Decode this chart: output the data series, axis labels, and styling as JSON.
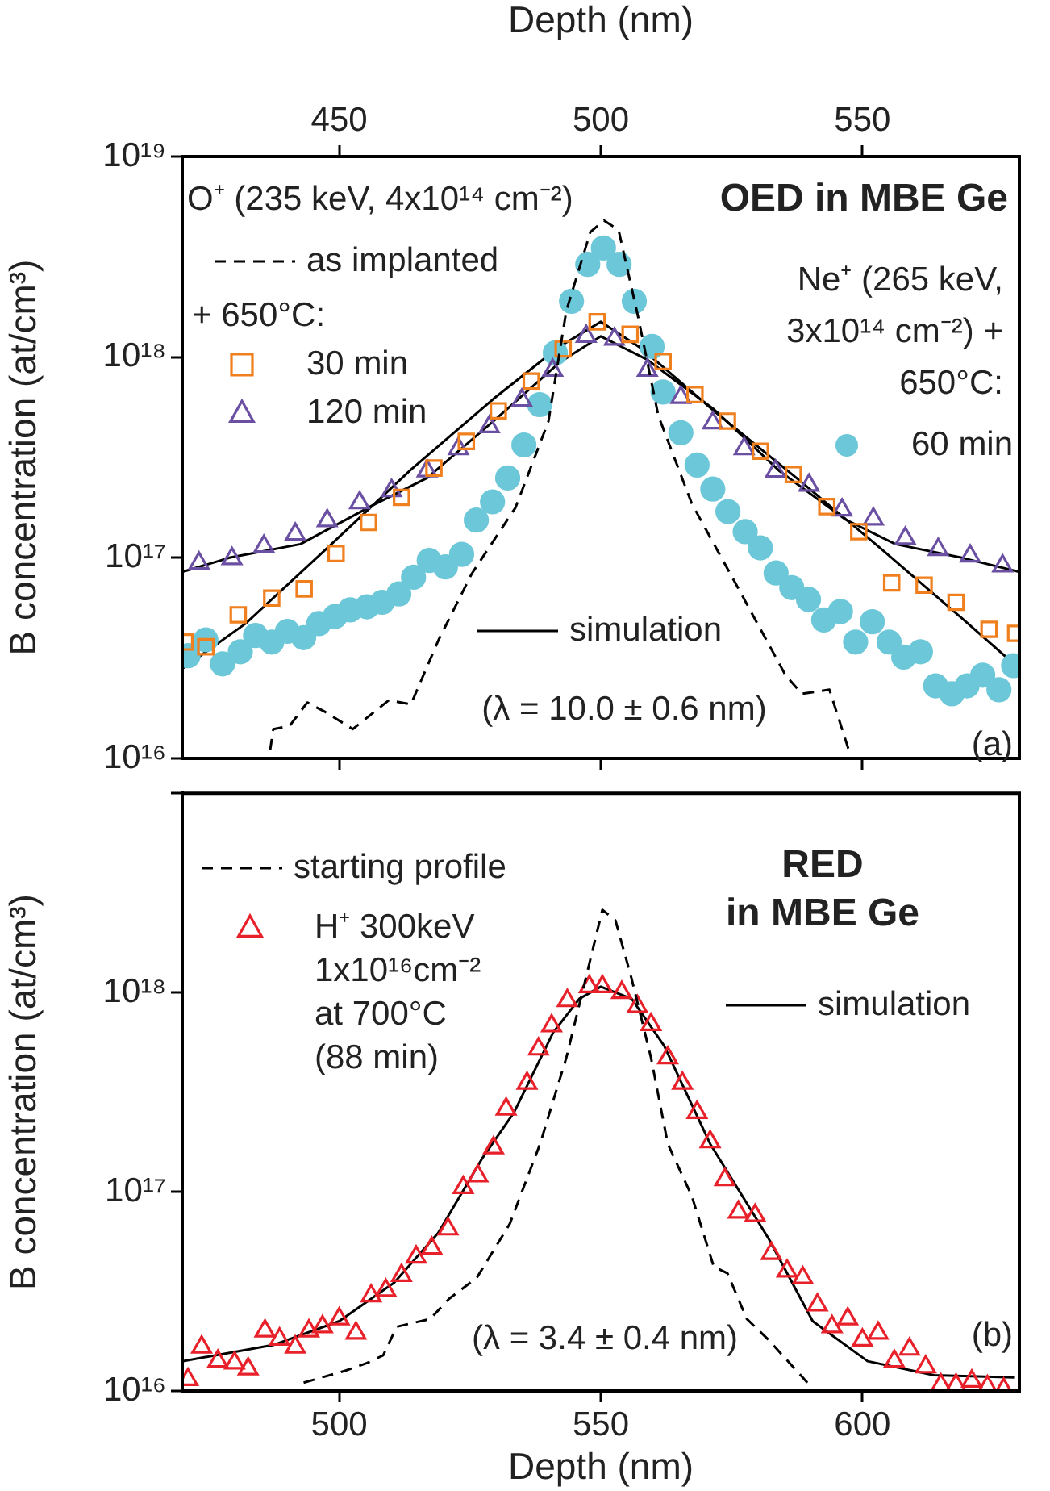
{
  "chart_data": [
    {
      "type": "scatter",
      "title": "OED in MBE Ge",
      "xlabel": "Depth (nm)",
      "ylabel": "B concentration (at/cm³)",
      "xlim": [
        420,
        580
      ],
      "xticks": [
        450,
        500,
        550
      ],
      "log": true,
      "ylim": [
        1e+16,
        1e+19
      ],
      "yticks": [
        {
          "value": 1e+16,
          "label": "10¹⁶"
        },
        {
          "value": 1e+17,
          "label": "10¹⁷"
        },
        {
          "value": 1e+18,
          "label": "10¹⁸"
        },
        {
          "value": 1e+19,
          "label": "10¹⁹"
        }
      ],
      "grid": false,
      "legend": "top left",
      "annotations": [
        "O⁺ (235 keV, 4x10¹⁴ cm⁻²)",
        "+ 650°C:",
        "Ne⁺ (265 keV, 3x10¹⁴ cm⁻²) + 650°C:",
        "(λ = 10.0 ± 0.6 nm)",
        "(a)"
      ],
      "series": [
        {
          "name": "as implanted",
          "type": "line",
          "line_style": "dashed",
          "marker": "none",
          "color": "#000000",
          "x": [
            436.8,
            437.4,
            440.5,
            443.9,
            447.4,
            452.6,
            454.7,
            459.5,
            463.7,
            469,
            475.3,
            483.7,
            490,
            493.4,
            498,
            500.6,
            503.4,
            507.1,
            511,
            517.4,
            527,
            535.3,
            538.4,
            543.7,
            547.4
          ],
          "values": [
            1.1e+16,
            1.4e+16,
            1.45e+16,
            1.9e+16,
            1.7e+16,
            1.4e+16,
            1.55e+16,
            1.95e+16,
            1.86e+16,
            3.9e+16,
            8.3e+16,
            1.78e+17,
            4.8e+17,
            1.7e+18,
            4.2e+18,
            4.8e+18,
            4.3e+18,
            1.6e+18,
            5.1e+17,
            1.86e+17,
            6.5e+16,
            2.6e+16,
            2.1e+16,
            2.2e+16,
            1.1e+16
          ]
        },
        {
          "name": "30 min",
          "type": "scatter",
          "marker": "square",
          "color": "#f07f1e",
          "x": [
            420.5,
            424.5,
            430.7,
            437.1,
            443.3,
            449.4,
            455.6,
            461.9,
            468.1,
            474.3,
            480.4,
            486.7,
            492.8,
            499.3,
            505.6,
            511.9,
            518,
            524.2,
            530.5,
            536.8,
            543.2,
            549.3,
            555.6,
            561.8,
            567.9,
            574.2,
            579.3
          ],
          "values": [
            3.8e+16,
            3.6e+16,
            5.2e+16,
            6.3e+16,
            7e+16,
            1.05e+17,
            1.5e+17,
            2e+17,
            2.8e+17,
            3.8e+17,
            5.4e+17,
            7.6e+17,
            1.1e+18,
            1.5e+18,
            1.3e+18,
            9.5e+17,
            6.5e+17,
            4.8e+17,
            3.4e+17,
            2.6e+17,
            1.8e+17,
            1.35e+17,
            7.5e+16,
            7.3e+16,
            6e+16,
            4.4e+16,
            4.2e+16
          ]
        },
        {
          "name": "120 min",
          "type": "scatter",
          "marker": "triangle",
          "color": "#6a4fa3",
          "x": [
            423.2,
            429.5,
            435.6,
            441.6,
            447.7,
            453.9,
            460,
            466.8,
            472.8,
            478.7,
            484.9,
            490.8,
            497.2,
            502.6,
            508.9,
            515.3,
            521.4,
            527.4,
            533.4,
            539.8,
            546.1,
            552.1,
            558.2,
            564.5,
            570.6,
            576.8
          ],
          "values": [
            9.4e+16,
            9.9e+16,
            1.14e+17,
            1.31e+17,
            1.53e+17,
            1.88e+17,
            2.16e+17,
            2.71e+17,
            3.5e+17,
            4.5e+17,
            6.1e+17,
            8.6e+17,
            1.27e+18,
            1.23e+18,
            8.6e+17,
            6.3e+17,
            4.7e+17,
            3.5e+17,
            2.7e+17,
            2.3e+17,
            1.73e+17,
            1.56e+17,
            1.25e+17,
            1.1e+17,
            1.02e+17,
            9.1e+16
          ]
        },
        {
          "name": "60 min",
          "type": "scatter",
          "marker": "circle",
          "color": "#6cc8d8",
          "x": [
            421.1,
            424.5,
            427.7,
            431.1,
            434,
            437.1,
            440.1,
            443.2,
            446.1,
            449.2,
            452.1,
            455.3,
            458.2,
            461.4,
            464.2,
            467.2,
            470.3,
            473.4,
            476.2,
            479.3,
            482.2,
            485.3,
            488.3,
            491.3,
            494.4,
            497.5,
            500.5,
            503.5,
            506.4,
            509.8,
            511.9,
            515.3,
            518.4,
            521.4,
            524.3,
            527.6,
            530.5,
            533.5,
            536.5,
            539.7,
            542.6,
            545.8,
            548.7,
            551.9,
            555.1,
            557.9,
            561.1,
            564,
            567.1,
            570,
            573,
            576.1,
            578.9
          ],
          "values": [
            3.25e+16,
            3.9e+16,
            2.96e+16,
            3.4e+16,
            4.1e+16,
            3.8e+16,
            4.3e+16,
            4e+16,
            4.7e+16,
            5.1e+16,
            5.5e+16,
            5.7e+16,
            6e+16,
            6.6e+16,
            8e+16,
            9.7e+16,
            9e+16,
            1.04e+17,
            1.54e+17,
            1.9e+17,
            2.5e+17,
            3.65e+17,
            5.8e+17,
            1.05e+18,
            1.9e+18,
            2.9e+18,
            3.5e+18,
            2.9e+18,
            1.9e+18,
            1.13e+18,
            6.7e+17,
            4.2e+17,
            2.9e+17,
            2.2e+17,
            1.7e+17,
            1.35e+17,
            1.12e+17,
            8.4e+16,
            7.1e+16,
            6.2e+16,
            4.9e+16,
            5.4e+16,
            3.8e+16,
            4.8e+16,
            3.8e+16,
            3.2e+16,
            3.4e+16,
            2.3e+16,
            2.1e+16,
            2.3e+16,
            2.6e+16,
            2.2e+16,
            2.9e+16
          ]
        },
        {
          "name": "simulation",
          "type": "line",
          "line_style": "solid",
          "marker": "none",
          "color": "#000000",
          "x": [
            420,
            432.1,
            447.9,
            463.7,
            479.5,
            492.1,
            500,
            507.9,
            521.6,
            537.4,
            553.2,
            569,
            580
          ],
          "values": [
            2.8e+16,
            4.7e+16,
            1.13e+17,
            2.75e+17,
            6.2e+17,
            1.13e+18,
            1.5e+18,
            1.1e+18,
            5.4e+17,
            2.5e+17,
            1.13e+17,
            5e+16,
            2.8e+16
          ]
        },
        {
          "type": "line",
          "line_style": "solid",
          "marker": "none",
          "color": "#000000",
          "x": [
            420,
            429,
            442.6,
            456.3,
            466.8,
            479.5,
            492.1,
            500,
            508.9,
            521.6,
            534.2,
            546.8,
            556.3,
            569,
            580
          ],
          "values": [
            8.5e+16,
            1e+17,
            1.17e+17,
            1.82e+17,
            2.5e+17,
            4.8e+17,
            9.4e+17,
            1.27e+18,
            9.7e+17,
            5.5e+17,
            2.7e+17,
            1.55e+17,
            1.17e+17,
            1e+17,
            8.5e+16
          ]
        }
      ]
    },
    {
      "type": "scatter",
      "title": "RED in MBE Ge",
      "xlabel": "Depth (nm)",
      "ylabel": "B concentration (at/cm³)",
      "xlim": [
        470,
        630
      ],
      "xticks": [
        500,
        550,
        600
      ],
      "log": true,
      "ylim": [
        1e+16,
        1e+19
      ],
      "yticks": [
        {
          "value": 1e+16,
          "label": "10¹⁶"
        },
        {
          "value": 1e+17,
          "label": "10¹⁷"
        },
        {
          "value": 1e+18,
          "label": "10¹⁸"
        },
        {
          "value": 1e+19,
          "label": null
        }
      ],
      "grid": false,
      "legend": "top left",
      "annotations": [
        "(λ = 3.4 ± 0.4 nm)",
        "(b)"
      ],
      "series": [
        {
          "name": "starting profile",
          "type": "line",
          "line_style": "dashed",
          "marker": "none",
          "color": "#000000",
          "x": [
            493.2,
            501,
            505.3,
            508.4,
            511,
            517.4,
            521,
            526.3,
            532.6,
            538.4,
            543.4,
            547.1,
            550.3,
            552.8,
            555.9,
            559.6,
            562.8,
            567.4,
            571.6,
            574.2,
            577.9,
            582.1,
            589.5
          ],
          "values": [
            1.1e+16,
            1.26e+16,
            1.38e+16,
            1.51e+16,
            2.1e+16,
            2.3e+16,
            2.9e+16,
            3.7e+16,
            6.9e+16,
            1.74e+17,
            4.7e+17,
            1.17e+18,
            2.6e+18,
            2.3e+18,
            1.17e+18,
            4.7e+17,
            1.74e+17,
            9.5e+16,
            4.2e+16,
            3.9e+16,
            2.3e+16,
            1.8e+16,
            1.1e+16
          ]
        },
        {
          "name": "H⁺ 300keV 1x10¹⁶cm⁻² at 700°C (88 min)",
          "type": "scatter",
          "marker": "triangle",
          "color": "#e8202a",
          "x": [
            471.1,
            473.7,
            476.8,
            480,
            482.6,
            485.8,
            488.6,
            491.6,
            494.2,
            496.8,
            500,
            503.2,
            506.1,
            508.9,
            511.9,
            514.7,
            517.7,
            520.8,
            523.7,
            526.5,
            529.5,
            531.9,
            535.9,
            538.1,
            540.6,
            543.6,
            547.8,
            550.3,
            554,
            557,
            559.6,
            562.8,
            565.6,
            568.4,
            570.9,
            573.7,
            576.3,
            579.5,
            582.6,
            585.6,
            588.6,
            591.4,
            594.2,
            597.2,
            600,
            603,
            606.1,
            609,
            612.1,
            615,
            617.9,
            620.9,
            623.9,
            627
          ],
          "values": [
            1.14e+16,
            1.66e+16,
            1.41e+16,
            1.38e+16,
            1.29e+16,
            2e+16,
            1.82e+16,
            1.66e+16,
            2e+16,
            2.1e+16,
            2.3e+16,
            1.95e+16,
            3e+16,
            3.2e+16,
            3.8e+16,
            4.7e+16,
            5.2e+16,
            6.5e+16,
            1.05e+17,
            1.2e+17,
            1.66e+17,
            2.6e+17,
            3.5e+17,
            5.2e+17,
            6.8e+17,
            9.1e+17,
            1.07e+18,
            1.07e+18,
            1e+18,
            8.5e+17,
            6.9e+17,
            4.7e+17,
            3.5e+17,
            2.5e+17,
            1.78e+17,
            1.15e+17,
            7.9e+16,
            7.6e+16,
            4.9e+16,
            4e+16,
            3.7e+16,
            2.7e+16,
            2.1e+16,
            2.3e+16,
            1.8e+16,
            1.95e+16,
            1.41e+16,
            1.62e+16,
            1.32e+16,
            1.07e+16,
            1.07e+16,
            1.12e+16,
            1.05e+16,
            1.02e+16
          ]
        },
        {
          "name": "simulation",
          "type": "line",
          "line_style": "solid",
          "marker": "none",
          "color": "#000000",
          "x": [
            470,
            487.4,
            500,
            510.5,
            518.9,
            527.4,
            533.4,
            540.9,
            545.9,
            550,
            555.9,
            562.1,
            570.9,
            582.1,
            590.5,
            601,
            613.7,
            629
          ],
          "values": [
            1.41e+16,
            1.7e+16,
            2.24e+16,
            3.5e+16,
            6.2e+16,
            1.48e+17,
            2.5e+17,
            6.3e+17,
            9.3e+17,
            1.07e+18,
            9.3e+17,
            5.4e+17,
            1.74e+17,
            5.8e+16,
            2.24e+16,
            1.41e+16,
            1.2e+16,
            1.17e+16
          ]
        }
      ]
    }
  ]
}
